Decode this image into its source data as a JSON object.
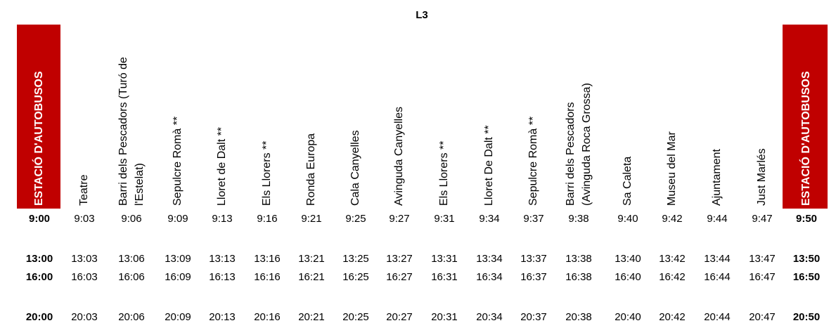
{
  "title": "L3",
  "columns": [
    [
      "ESTACIÓ D'AUTOBUSOS"
    ],
    [
      "Teatre"
    ],
    [
      "Barri dels Pescadors (Turó de",
      "l'Estelat)"
    ],
    [
      "Sepulcre Romà **"
    ],
    [
      "Lloret de Dalt **"
    ],
    [
      "Els Llorers **"
    ],
    [
      "Ronda Europa"
    ],
    [
      "Cala Canyelles"
    ],
    [
      "Avinguda Canyelles"
    ],
    [
      "Els Llorers **"
    ],
    [
      "Lloret De Dalt **"
    ],
    [
      "Sepulcre Romà **"
    ],
    [
      "Barri dels Pescadors",
      "(Avinguda Roca Grossa)"
    ],
    [
      "Sa Caleta"
    ],
    [
      "Museu del Mar"
    ],
    [
      "Ajuntament"
    ],
    [
      "Just Marlés"
    ],
    [
      "ESTACIÓ D'AUTOBUSOS"
    ]
  ],
  "rows": [
    [
      "9:00",
      "9:03",
      "9:06",
      "9:09",
      "9:13",
      "9:16",
      "9:21",
      "9:25",
      "9:27",
      "9:31",
      "9:34",
      "9:37",
      "9:38",
      "9:40",
      "9:42",
      "9:44",
      "9:47",
      "9:50"
    ],
    [
      "13:00",
      "13:03",
      "13:06",
      "13:09",
      "13:13",
      "13:16",
      "13:21",
      "13:25",
      "13:27",
      "13:31",
      "13:34",
      "13:37",
      "13:38",
      "13:40",
      "13:42",
      "13:44",
      "13:47",
      "13:50"
    ],
    [
      "16:00",
      "16:03",
      "16:06",
      "16:09",
      "16:13",
      "16:16",
      "16:21",
      "16:25",
      "16:27",
      "16:31",
      "16:34",
      "16:37",
      "16:38",
      "16:40",
      "16:42",
      "16:44",
      "16:47",
      "16:50"
    ],
    [
      "20:00",
      "20:03",
      "20:06",
      "20:09",
      "20:13",
      "20:16",
      "20:21",
      "20:25",
      "20:27",
      "20:31",
      "20:34",
      "20:37",
      "20:38",
      "20:40",
      "20:42",
      "20:44",
      "20:47",
      "20:50"
    ]
  ]
}
